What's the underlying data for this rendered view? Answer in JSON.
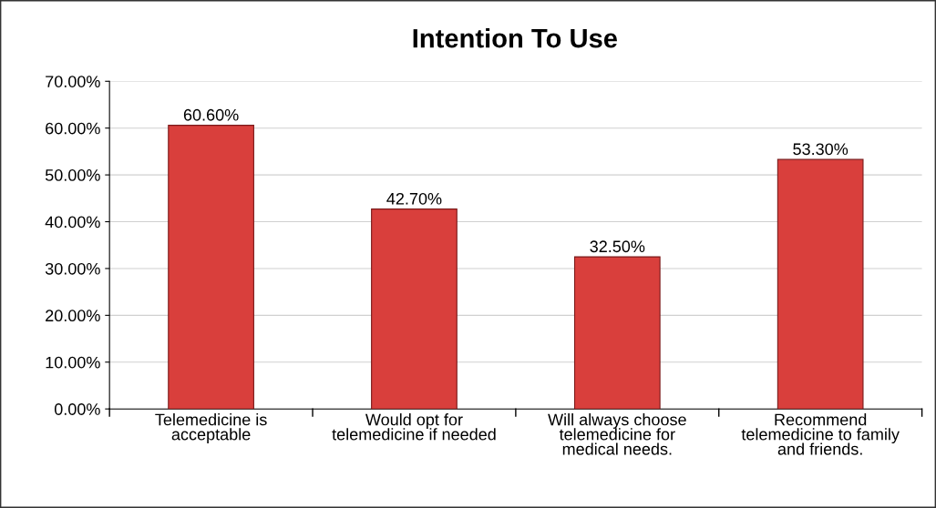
{
  "chart_data": {
    "type": "bar",
    "title": "Intention To Use",
    "categories": [
      "Telemedicine is\nacceptable",
      "Would opt for\ntelemedicine if needed",
      "Will always choose\ntelemedicine for\nmedical needs.",
      "Recommend\ntelemedicine to family\nand friends."
    ],
    "values": [
      60.6,
      42.7,
      32.5,
      53.3
    ],
    "value_labels": [
      "60.60%",
      "42.70%",
      "32.50%",
      "53.30%"
    ],
    "color": "#d93f3c",
    "ylim": [
      0,
      70
    ],
    "yticks": [
      {
        "value": 0,
        "label": "0.00%"
      },
      {
        "value": 10,
        "label": "10.00%"
      },
      {
        "value": 20,
        "label": "20.00%"
      },
      {
        "value": 30,
        "label": "30.00%"
      },
      {
        "value": 40,
        "label": "40.00%"
      },
      {
        "value": 50,
        "label": "50.00%"
      },
      {
        "value": 60,
        "label": "60.00%"
      },
      {
        "value": 70,
        "label": "70.00%"
      }
    ],
    "grid": "y"
  }
}
